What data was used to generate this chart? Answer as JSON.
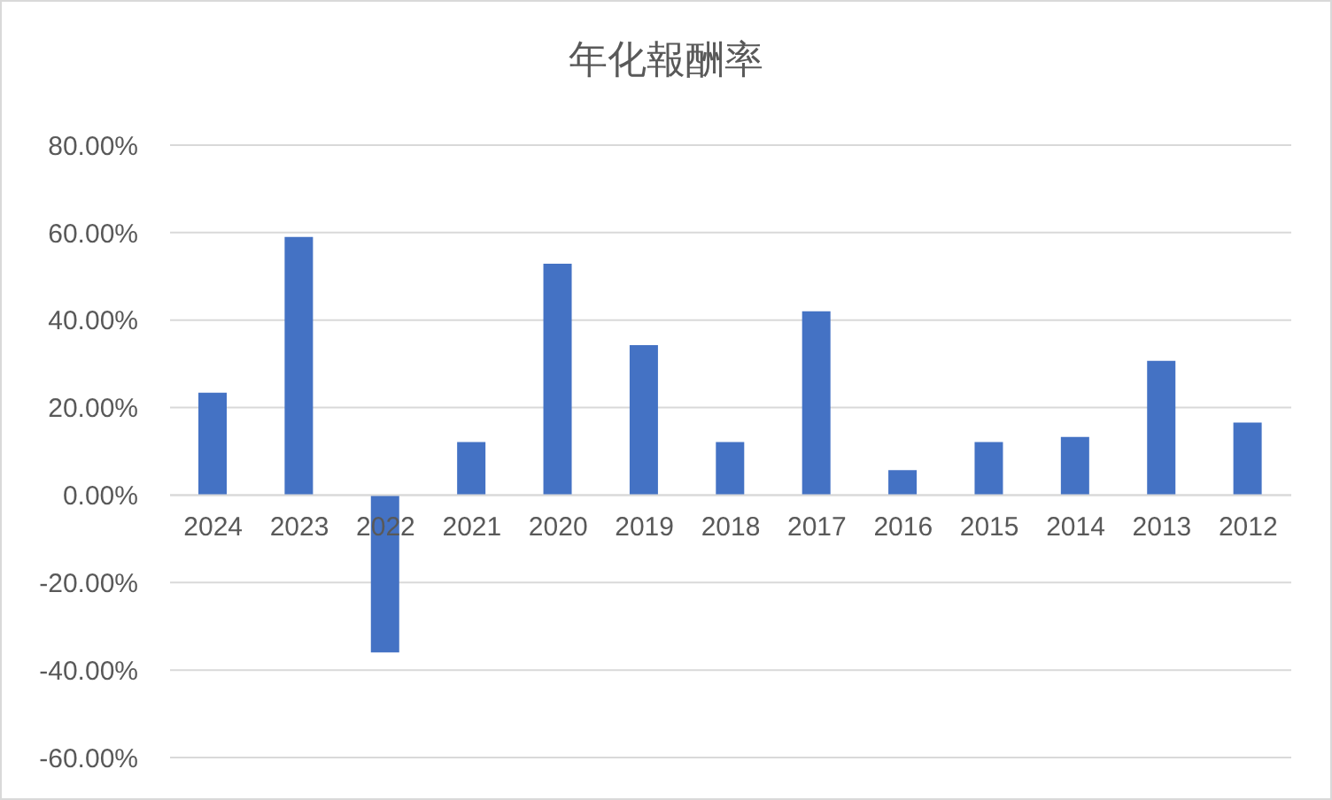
{
  "chart_data": {
    "type": "bar",
    "title": "年化報酬率",
    "categories": [
      "2024",
      "2023",
      "2022",
      "2021",
      "2020",
      "2019",
      "2018",
      "2017",
      "2016",
      "2015",
      "2014",
      "2013",
      "2012"
    ],
    "values": [
      23.4,
      59,
      -36,
      12.1,
      52.9,
      34.3,
      12.1,
      42,
      5.7,
      12.1,
      13.3,
      30.7,
      16.6
    ],
    "color": "#4472c4",
    "ylim": [
      -60,
      80
    ],
    "yticks": [
      {
        "value": -60,
        "label": "-60.00%"
      },
      {
        "value": -40,
        "label": "-40.00%"
      },
      {
        "value": -20,
        "label": "-20.00%"
      },
      {
        "value": 0,
        "label": "0.00%"
      },
      {
        "value": 20,
        "label": "20.00%"
      },
      {
        "value": 40,
        "label": "40.00%"
      },
      {
        "value": 60,
        "label": "60.00%"
      },
      {
        "value": 80,
        "label": "80.00%"
      }
    ],
    "grid": "y"
  }
}
